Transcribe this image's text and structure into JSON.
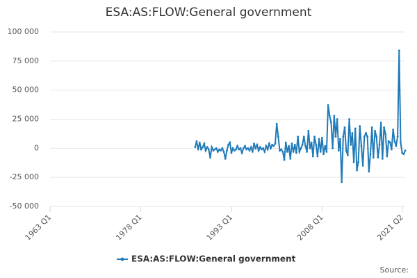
{
  "chart_data": {
    "type": "line",
    "title": "ESA:AS:FLOW:General government",
    "credit": "Source:",
    "xlim": [
      "1963 Q1",
      "2021 Q4"
    ],
    "xticks": [
      "1963 Q1",
      "1978 Q1",
      "1993 Q1",
      "2008 Q1",
      "2021 Q2"
    ],
    "ylim": [
      -50000,
      100000
    ],
    "yticks": [
      {
        "value": -50000,
        "label": "-50 000"
      },
      {
        "value": -25000,
        "label": "-25 000"
      },
      0,
      {
        "value": 25000,
        "label": "25 000"
      },
      {
        "value": 50000,
        "label": "50 000"
      },
      {
        "value": 75000,
        "label": "75 000"
      },
      {
        "value": 100000,
        "label": "100 000"
      }
    ],
    "grid": true,
    "legend": "bottom",
    "x": [
      "1987 Q1",
      "1987 Q2",
      "1987 Q3",
      "1987 Q4",
      "1988 Q1",
      "1988 Q2",
      "1988 Q3",
      "1988 Q4",
      "1989 Q1",
      "1989 Q2",
      "1989 Q3",
      "1989 Q4",
      "1990 Q1",
      "1990 Q2",
      "1990 Q3",
      "1990 Q4",
      "1991 Q1",
      "1991 Q2",
      "1991 Q3",
      "1991 Q4",
      "1992 Q1",
      "1992 Q2",
      "1992 Q3",
      "1992 Q4",
      "1993 Q1",
      "1993 Q2",
      "1993 Q3",
      "1993 Q4",
      "1994 Q1",
      "1994 Q2",
      "1994 Q3",
      "1994 Q4",
      "1995 Q1",
      "1995 Q2",
      "1995 Q3",
      "1995 Q4",
      "1996 Q1",
      "1996 Q2",
      "1996 Q3",
      "1996 Q4",
      "1997 Q1",
      "1997 Q2",
      "1997 Q3",
      "1997 Q4",
      "1998 Q1",
      "1998 Q2",
      "1998 Q3",
      "1998 Q4",
      "1999 Q1",
      "1999 Q2",
      "1999 Q3",
      "1999 Q4",
      "2000 Q1",
      "2000 Q2",
      "2000 Q3",
      "2000 Q4",
      "2001 Q1",
      "2001 Q2",
      "2001 Q3",
      "2001 Q4",
      "2002 Q1",
      "2002 Q2",
      "2002 Q3",
      "2002 Q4",
      "2003 Q1",
      "2003 Q2",
      "2003 Q3",
      "2003 Q4",
      "2004 Q1",
      "2004 Q2",
      "2004 Q3",
      "2004 Q4",
      "2005 Q1",
      "2005 Q2",
      "2005 Q3",
      "2005 Q4",
      "2006 Q1",
      "2006 Q2",
      "2006 Q3",
      "2006 Q4",
      "2007 Q1",
      "2007 Q2",
      "2007 Q3",
      "2007 Q4",
      "2008 Q1",
      "2008 Q2",
      "2008 Q3",
      "2008 Q4",
      "2009 Q1",
      "2009 Q2",
      "2009 Q3",
      "2009 Q4",
      "2010 Q1",
      "2010 Q2",
      "2010 Q3",
      "2010 Q4",
      "2011 Q1",
      "2011 Q2",
      "2011 Q3",
      "2011 Q4",
      "2012 Q1",
      "2012 Q2",
      "2012 Q3",
      "2012 Q4",
      "2013 Q1",
      "2013 Q2",
      "2013 Q3",
      "2013 Q4",
      "2014 Q1",
      "2014 Q2",
      "2014 Q3",
      "2014 Q4",
      "2015 Q1",
      "2015 Q2",
      "2015 Q3",
      "2015 Q4",
      "2016 Q1",
      "2016 Q2",
      "2016 Q3",
      "2016 Q4",
      "2017 Q1",
      "2017 Q2",
      "2017 Q3",
      "2017 Q4",
      "2018 Q1",
      "2018 Q2",
      "2018 Q3",
      "2018 Q4",
      "2019 Q1",
      "2019 Q2",
      "2019 Q3",
      "2019 Q4",
      "2020 Q1",
      "2020 Q2",
      "2020 Q3",
      "2020 Q4",
      "2021 Q1",
      "2021 Q2",
      "2021 Q3",
      "2021 Q4"
    ],
    "series": [
      {
        "name": "ESA:AS:FLOW:General government",
        "color": "#1f7ab8",
        "values": [
          1000,
          6000,
          -1000,
          5000,
          -1000,
          1000,
          4000,
          -2000,
          1000,
          -1000,
          -8000,
          1000,
          -2000,
          -1000,
          0,
          -3000,
          -1000,
          -2000,
          0,
          -3000,
          -9000,
          -2000,
          3000,
          5000,
          -4000,
          0,
          -2000,
          -1000,
          2000,
          -1000,
          0,
          -4000,
          0,
          2000,
          -1000,
          0,
          -2000,
          1000,
          -3000,
          4000,
          0,
          3000,
          -2000,
          1000,
          -1000,
          0,
          -3000,
          2000,
          -1000,
          4000,
          0,
          3000,
          2000,
          4000,
          21000,
          10000,
          -2000,
          -1000,
          -3000,
          -10000,
          5000,
          -3000,
          2000,
          -9000,
          4000,
          -3000,
          3000,
          -4000,
          10000,
          -3000,
          0,
          3000,
          10000,
          2000,
          -3000,
          15000,
          0,
          5000,
          -7000,
          10000,
          3000,
          -7000,
          8000,
          -3000,
          9000,
          -5000,
          2000,
          -3000,
          37000,
          28000,
          22000,
          0,
          28000,
          10000,
          25000,
          -2000,
          8000,
          -29000,
          10000,
          18000,
          -2000,
          -6000,
          25000,
          3000,
          13000,
          -12000,
          17000,
          -19000,
          -12000,
          19000,
          2000,
          -15000,
          10000,
          13000,
          10000,
          -20000,
          -5000,
          18000,
          -8000,
          15000,
          10000,
          -8000,
          3000,
          22000,
          -9000,
          18000,
          12000,
          -7000,
          6000,
          5000,
          -1000,
          16000,
          6000,
          2000,
          10000,
          84000,
          5000,
          -4000,
          -5000,
          -2000
        ]
      }
    ]
  }
}
